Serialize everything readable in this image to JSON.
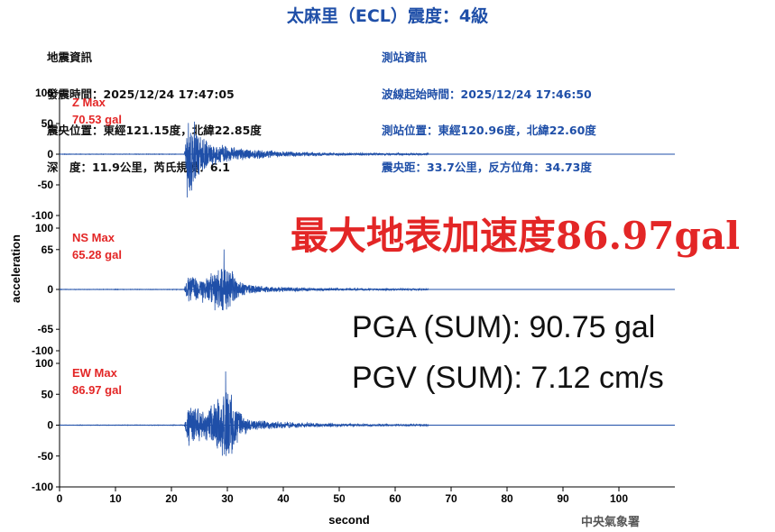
{
  "header": {
    "title": "太麻里（ECL）震度：4級",
    "quake_info": [
      "地震資訊",
      "發震時間：2025/12/24 17:47:05",
      "震央位置：東經121.15度，北緯22.85度",
      "深　度：11.9公里，芮氏規模：6.1"
    ],
    "station_info": [
      "測站資訊",
      "波線起始時間：2025/12/24 17:46:50",
      "測站位置：東經120.96度，北緯22.60度",
      "震央距：33.7公里，反方位角：34.73度"
    ]
  },
  "overlay": {
    "pga_max": "最大地表加速度86.97gal",
    "pga_sum": "PGA (SUM): 90.75 gal",
    "pgv_sum": "PGV (SUM): 7.12 cm/s"
  },
  "credit": "中央氣象署",
  "colors": {
    "trace": "#1f4fa8",
    "label_red": "#e32626",
    "title_blue": "#1f4fa8"
  },
  "chart_data": [
    {
      "type": "line",
      "xlabel": "second",
      "ylabel": "acceleration",
      "x_ticks": [
        0,
        10,
        20,
        30,
        40,
        50,
        60,
        70,
        80,
        90,
        100
      ],
      "xlim": [
        0,
        110
      ],
      "panels": [
        {
          "label": "Z Max",
          "value": "70.53 gal",
          "ylim": [
            -100,
            100
          ],
          "y_ticks": [
            100,
            50,
            0,
            -50,
            -100
          ],
          "peak": 70.53,
          "peak_time": 22.8,
          "onset": 22.3,
          "decay": 8.5,
          "seed": 11
        },
        {
          "label": "NS Max",
          "value": "65.28 gal",
          "ylim": [
            -100,
            100
          ],
          "y_ticks": [
            100,
            65,
            0,
            -65,
            -100
          ],
          "peak": 65.28,
          "peak_time": 29.4,
          "onset": 22.3,
          "decay": 7.5,
          "seed": 23
        },
        {
          "label": "EW Max",
          "value": "86.97 gal",
          "ylim": [
            -100,
            100
          ],
          "y_ticks": [
            100,
            50,
            0,
            -50,
            -100
          ],
          "peak": 86.97,
          "peak_time": 29.7,
          "onset": 22.3,
          "decay": 8.0,
          "seed": 37
        }
      ]
    }
  ]
}
